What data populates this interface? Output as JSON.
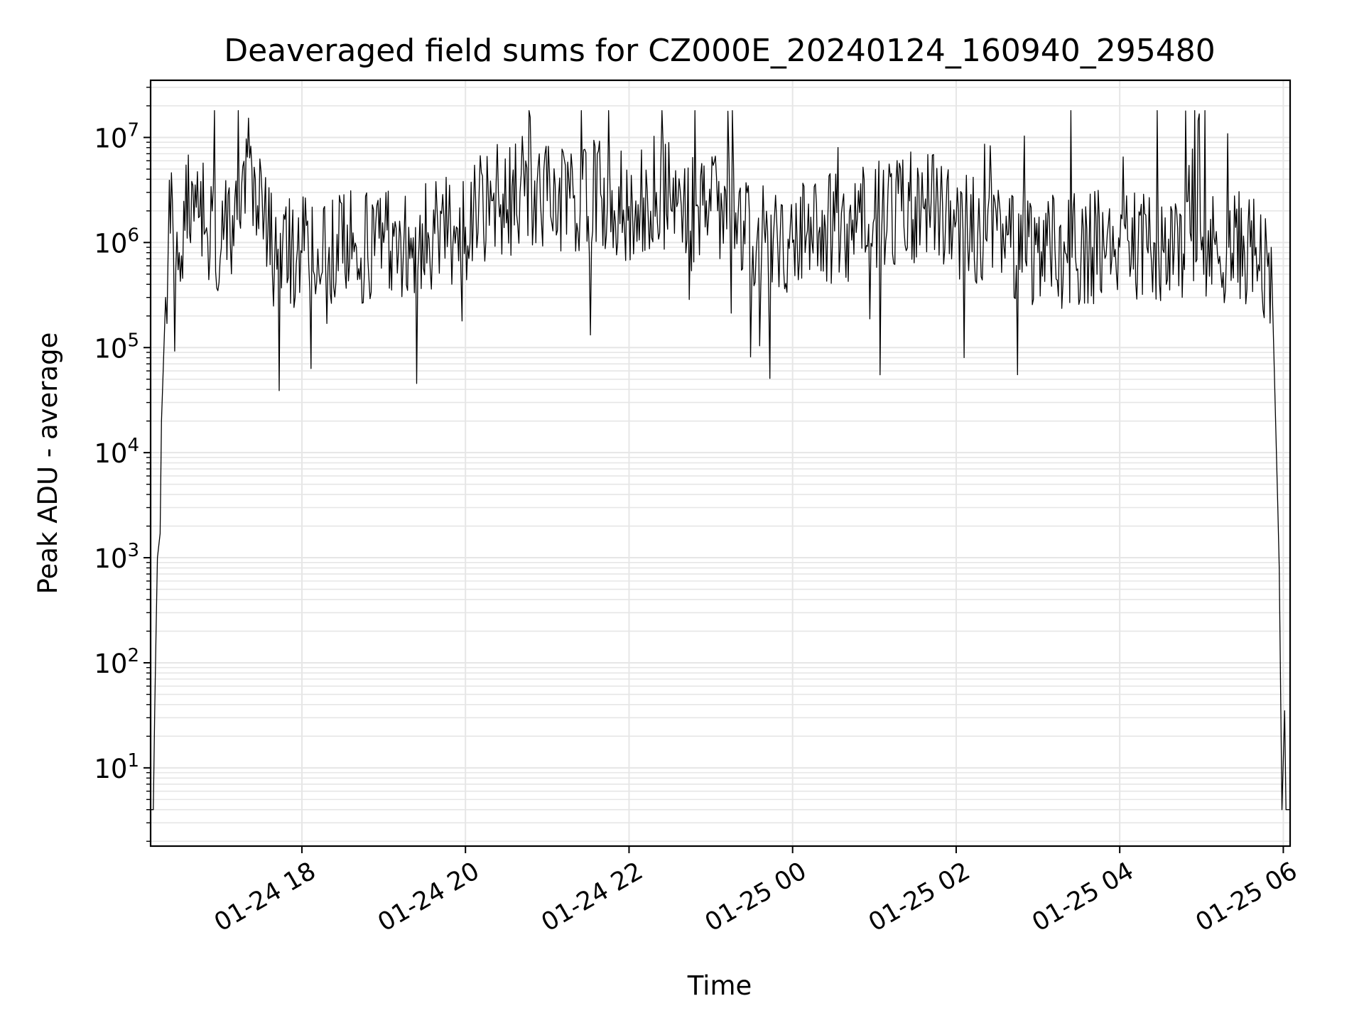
{
  "chart_data": {
    "type": "line",
    "title": "Deaveraged field sums for CZ000E_20240124_160940_295480",
    "xlabel": "Time",
    "ylabel": "Peak ADU - average",
    "x_axis": {
      "kind": "datetime",
      "range": [
        "2024-01-24 16:09",
        "2024-01-25 06:05"
      ],
      "ticks": [
        {
          "t": "2024-01-24 18:00",
          "label": "01-24 18"
        },
        {
          "t": "2024-01-24 20:00",
          "label": "01-24 20"
        },
        {
          "t": "2024-01-24 22:00",
          "label": "01-24 22"
        },
        {
          "t": "2024-01-25 00:00",
          "label": "01-25 00"
        },
        {
          "t": "2024-01-25 02:00",
          "label": "01-25 02"
        },
        {
          "t": "2024-01-25 04:00",
          "label": "01-25 04"
        },
        {
          "t": "2024-01-25 06:00",
          "label": "01-25 06"
        }
      ]
    },
    "y_axis": {
      "scale": "log",
      "range": [
        1.8,
        35000000
      ],
      "ticks": [
        {
          "value": 10,
          "base": "10",
          "exp": "1"
        },
        {
          "value": 100,
          "base": "10",
          "exp": "2"
        },
        {
          "value": 1000,
          "base": "10",
          "exp": "3"
        },
        {
          "value": 10000,
          "base": "10",
          "exp": "4"
        },
        {
          "value": 100000,
          "base": "10",
          "exp": "5"
        },
        {
          "value": 1000000,
          "base": "10",
          "exp": "6"
        },
        {
          "value": 10000000,
          "base": "10",
          "exp": "7"
        }
      ]
    },
    "grid": true,
    "series": [
      {
        "color": "#000000",
        "points": [
          [
            "2024-01-24 16:09",
            4
          ],
          [
            "2024-01-24 16:11",
            4
          ],
          [
            "2024-01-24 16:12",
            35
          ],
          [
            "2024-01-24 16:13",
            200
          ],
          [
            "2024-01-24 16:14",
            1000
          ],
          [
            "2024-01-24 16:16",
            1700
          ],
          [
            "2024-01-24 16:17",
            20000
          ],
          [
            "2024-01-24 16:18",
            50000
          ],
          [
            "2024-01-24 16:20",
            300000
          ],
          [
            "2024-01-24 16:22",
            1000000
          ],
          [
            "2024-01-24 16:25",
            2500000
          ],
          [
            "2024-01-24 16:30",
            800000
          ],
          [
            "2024-01-24 16:40",
            3500000
          ],
          [
            "2024-01-24 17:00",
            700000
          ],
          [
            "2024-01-24 17:20",
            6500000
          ],
          [
            "2024-01-24 17:40",
            700000
          ],
          [
            "2024-01-24 18:00",
            800000
          ],
          [
            "2024-01-24 18:20",
            900000
          ],
          [
            "2024-01-24 18:40",
            900000
          ],
          [
            "2024-01-24 19:00",
            1000000
          ],
          [
            "2024-01-24 19:20",
            1100000
          ],
          [
            "2024-01-24 19:40",
            1200000
          ],
          [
            "2024-01-24 20:00",
            1400000
          ],
          [
            "2024-01-24 20:20",
            2500000
          ],
          [
            "2024-01-24 20:40",
            3000000
          ],
          [
            "2024-01-24 21:00",
            2500000
          ],
          [
            "2024-01-24 21:20",
            2800000
          ],
          [
            "2024-01-24 21:40",
            2600000
          ],
          [
            "2024-01-24 22:00",
            2200000
          ],
          [
            "2024-01-24 22:20",
            3000000
          ],
          [
            "2024-01-24 22:40",
            2500000
          ],
          [
            "2024-01-24 23:00",
            2000000
          ],
          [
            "2024-01-24 23:20",
            1800000
          ],
          [
            "2024-01-24 23:40",
            1000000
          ],
          [
            "2024-01-25 00:00",
            1000000
          ],
          [
            "2024-01-25 00:20",
            1400000
          ],
          [
            "2024-01-25 00:40",
            1500000
          ],
          [
            "2024-01-25 01:00",
            1700000
          ],
          [
            "2024-01-25 01:20",
            2000000
          ],
          [
            "2024-01-25 01:40",
            2300000
          ],
          [
            "2024-01-25 02:00",
            1600000
          ],
          [
            "2024-01-25 02:20",
            1100000
          ],
          [
            "2024-01-25 02:40",
            900000
          ],
          [
            "2024-01-25 03:00",
            800000
          ],
          [
            "2024-01-25 03:20",
            800000
          ],
          [
            "2024-01-25 03:40",
            900000
          ],
          [
            "2024-01-25 04:00",
            900000
          ],
          [
            "2024-01-25 04:20",
            900000
          ],
          [
            "2024-01-25 04:40",
            900000
          ],
          [
            "2024-01-25 05:00",
            850000
          ],
          [
            "2024-01-25 05:20",
            900000
          ],
          [
            "2024-01-25 05:40",
            900000
          ],
          [
            "2024-01-25 05:52",
            300000
          ],
          [
            "2024-01-25 05:54",
            30000
          ],
          [
            "2024-01-25 05:56",
            3000
          ],
          [
            "2024-01-25 05:57",
            800
          ],
          [
            "2024-01-25 05:59",
            4
          ],
          [
            "2024-01-25 06:01",
            35
          ],
          [
            "2024-01-25 06:02",
            4
          ],
          [
            "2024-01-25 06:05",
            4
          ]
        ]
      }
    ]
  }
}
